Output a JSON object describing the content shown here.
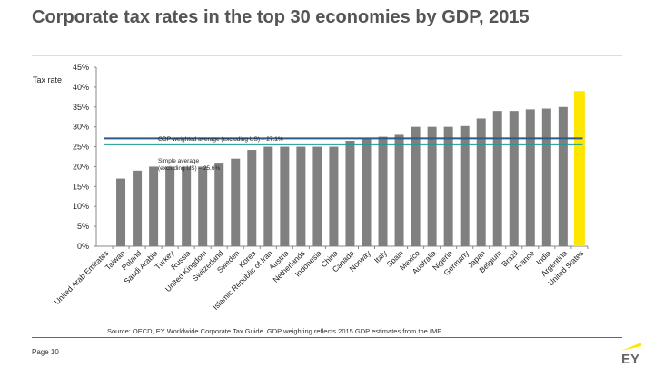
{
  "title": "Corporate tax rates in the top 30 economies by GDP, 2015",
  "source": "Source: OECD, EY Worldwide Corporate Tax Guide. GDP weighting reflects 2015 GDP estimates from the IMF.",
  "page": "Page 10",
  "logo_text": "EY",
  "colors": {
    "bar": "#808080",
    "highlight": "#ffe600",
    "gdp_line": "#2e5a87",
    "simple_line": "#1a9a9a",
    "rule": "#f2e96a"
  },
  "chart_data": {
    "type": "bar",
    "ylabel": "Tax rate",
    "ylim": [
      0,
      45
    ],
    "yticks": [
      "0%",
      "5%",
      "10%",
      "15%",
      "20%",
      "25%",
      "30%",
      "35%",
      "40%",
      "45%"
    ],
    "grid": false,
    "categories": [
      "United Arab Emirates",
      "Taiwan",
      "Poland",
      "Saudi Arabia",
      "Turkey",
      "Russia",
      "United Kingdom",
      "Switzerland",
      "Sweden",
      "Korea",
      "Islamic Republic of Iran",
      "Austria",
      "Netherlands",
      "Indonesia",
      "China",
      "Canada",
      "Norway",
      "Italy",
      "Spain",
      "Mexico",
      "Australia",
      "Nigeria",
      "Germany",
      "Japan",
      "Belgium",
      "Brazil",
      "France",
      "India",
      "Argentina",
      "United States"
    ],
    "values": [
      0,
      17,
      19,
      20,
      20,
      20,
      20,
      21,
      22,
      24.2,
      25,
      25,
      25,
      25,
      25,
      26.5,
      27,
      27.5,
      28,
      30,
      30,
      30,
      30.2,
      32.1,
      34,
      34,
      34.4,
      34.6,
      35,
      39
    ],
    "highlight": "United States",
    "reference_lines": [
      {
        "label": "GDP-weighted average (excluding US) – 27.1%",
        "value": 27.1
      },
      {
        "label_line1": "Simple average",
        "label_line2": "(excluding US) – 25.6%",
        "value": 25.6
      }
    ]
  }
}
